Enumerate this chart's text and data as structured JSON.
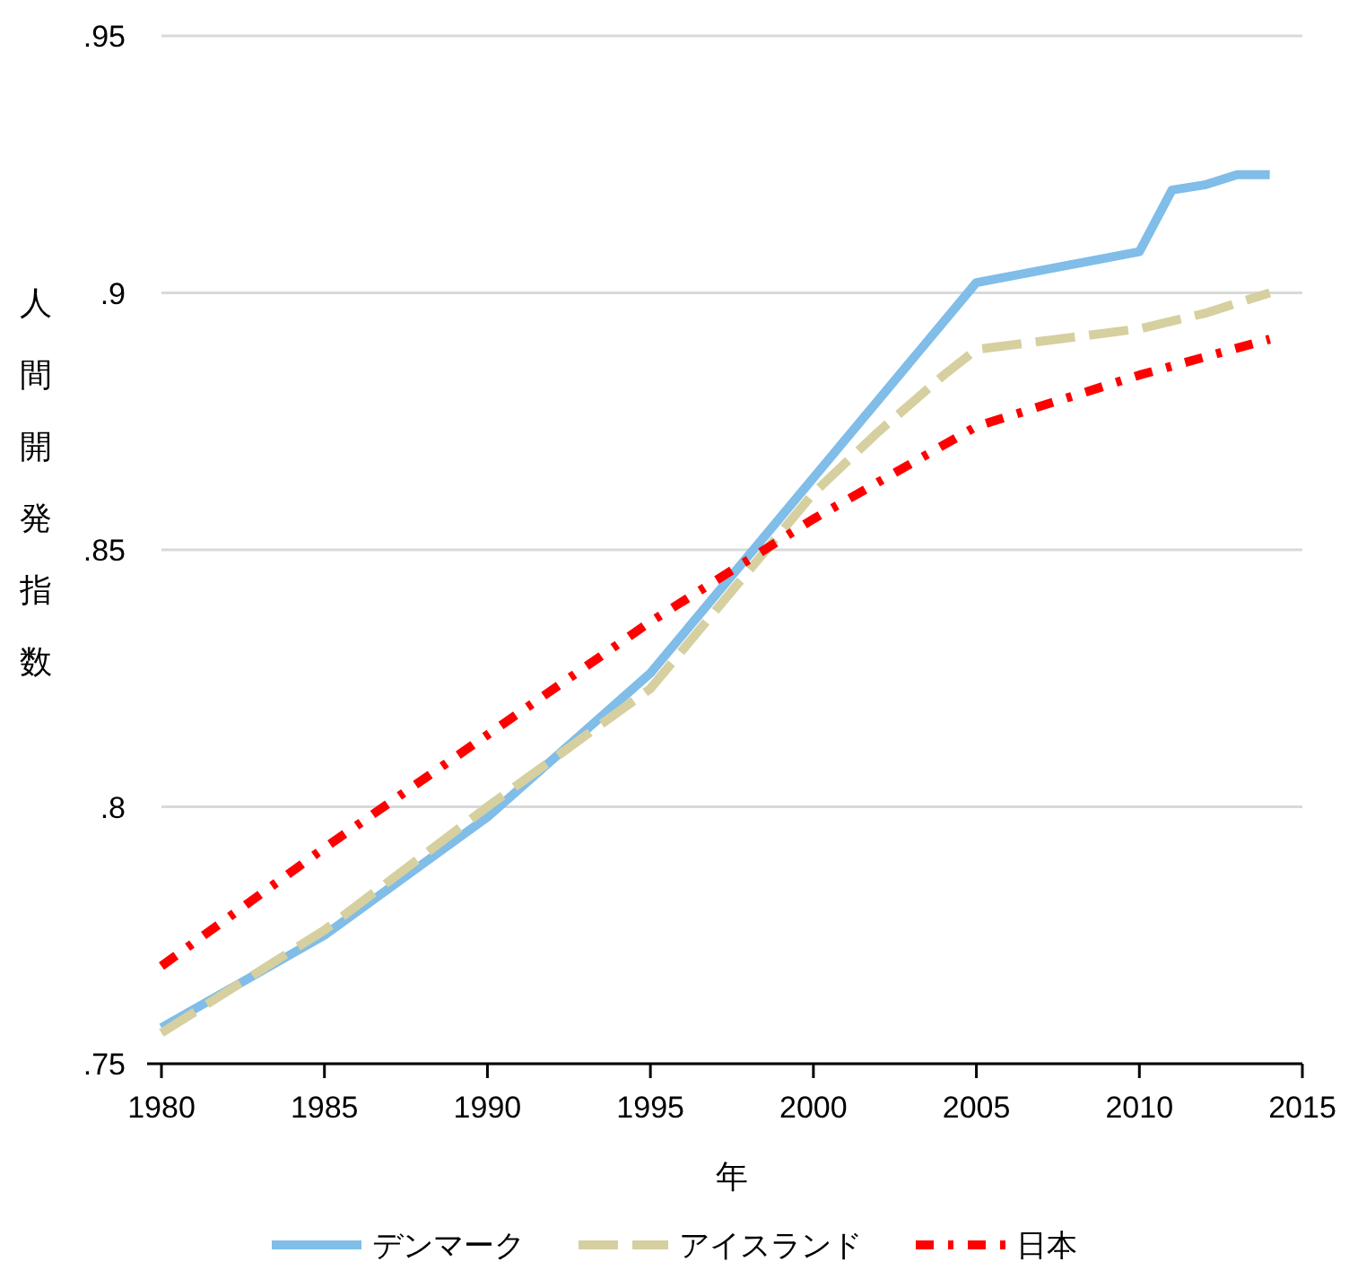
{
  "chart_data": {
    "type": "line",
    "xlabel": "年",
    "ylabel": "人間開発指数",
    "xlim": [
      1980,
      2015
    ],
    "xticks": [
      1980,
      1985,
      1990,
      1995,
      2000,
      2005,
      2010,
      2015
    ],
    "ylim": [
      0.75,
      0.95
    ],
    "yticks": [
      {
        "value": 0.75,
        "label": ".75"
      },
      {
        "value": 0.8,
        "label": ".8"
      },
      {
        "value": 0.85,
        "label": ".85"
      },
      {
        "value": 0.9,
        "label": ".9"
      },
      {
        "value": 0.95,
        "label": ".95"
      }
    ],
    "grid": "y",
    "legend": "bottom",
    "series": [
      {
        "name": "デンマーク",
        "color": "#80bde8",
        "line_style": "solid",
        "x": [
          1980,
          1985,
          1990,
          1995,
          2000,
          2005,
          2010,
          2011,
          2012,
          2013,
          2014
        ],
        "values": [
          0.757,
          0.775,
          0.798,
          0.826,
          0.864,
          0.902,
          0.908,
          0.92,
          0.921,
          0.923,
          0.923
        ]
      },
      {
        "name": "アイスランド",
        "color": "#d6cf9f",
        "line_style": "dashed",
        "x": [
          1980,
          1985,
          1990,
          1995,
          2000,
          2002,
          2004,
          2005,
          2010,
          2012,
          2014
        ],
        "values": [
          0.756,
          0.776,
          0.8,
          0.823,
          0.861,
          0.873,
          0.884,
          0.889,
          0.893,
          0.896,
          0.9
        ]
      },
      {
        "name": "日本",
        "color": "#ff0000",
        "line_style": "dotted",
        "x": [
          1980,
          1985,
          1990,
          1995,
          2000,
          2005,
          2010,
          2014
        ],
        "values": [
          0.769,
          0.792,
          0.814,
          0.836,
          0.856,
          0.874,
          0.884,
          0.891
        ]
      }
    ]
  }
}
